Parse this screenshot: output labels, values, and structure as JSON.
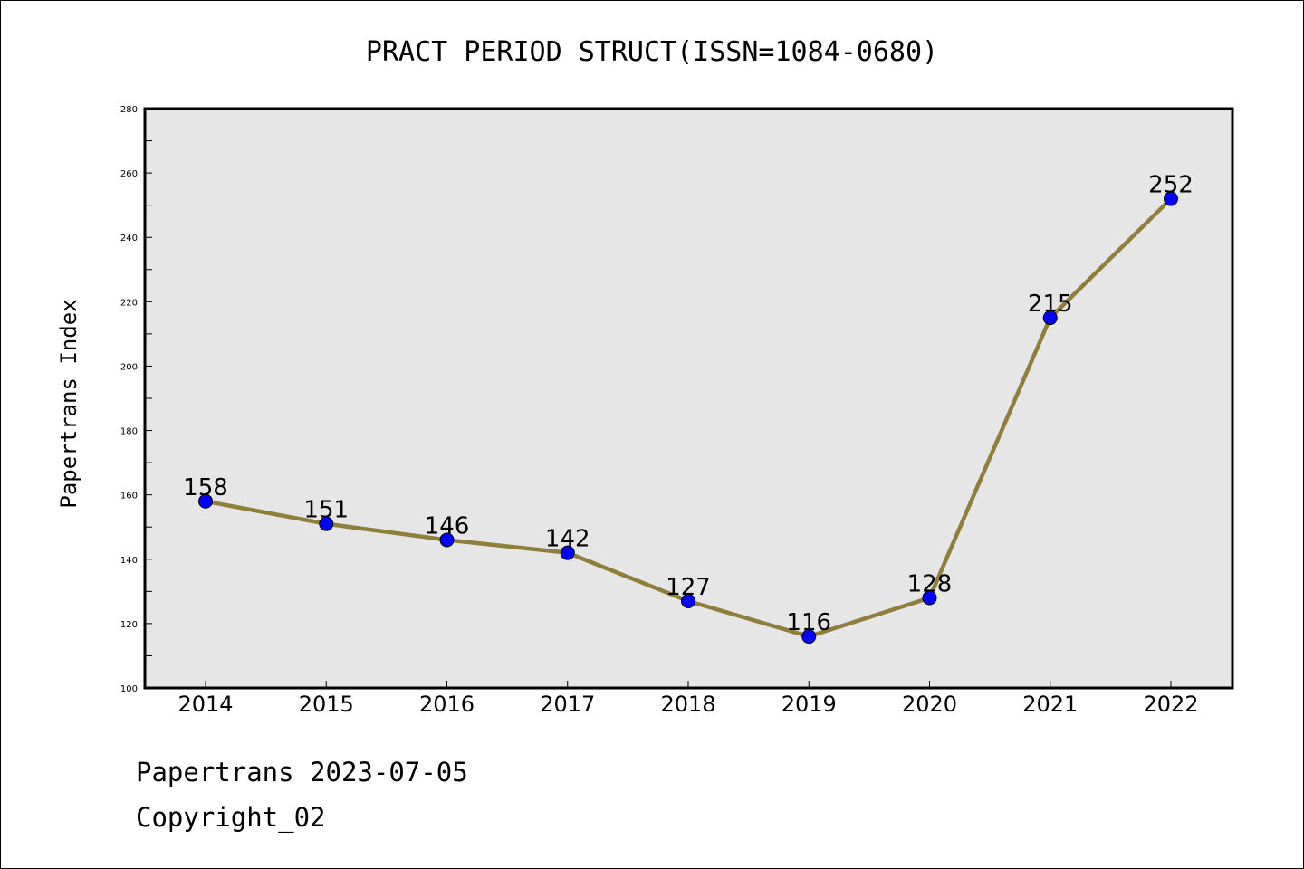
{
  "chart_data": {
    "type": "line",
    "title": "PRACT PERIOD STRUCT(ISSN=1084-0680)",
    "xlabel": "",
    "ylabel": "Papertrans Index",
    "categories": [
      "2014",
      "2015",
      "2016",
      "2017",
      "2018",
      "2019",
      "2020",
      "2021",
      "2022"
    ],
    "values": [
      158,
      151,
      146,
      142,
      127,
      116,
      128,
      215,
      252
    ],
    "data_labels": [
      "158",
      "151",
      "146",
      "142",
      "127",
      "116",
      "128",
      "215",
      "252"
    ],
    "ylim": [
      100,
      280
    ],
    "yticks": [
      100,
      120,
      140,
      160,
      180,
      200,
      220,
      240,
      260,
      280
    ],
    "ytick_labels": [
      "100",
      "120",
      "140",
      "160",
      "180",
      "200",
      "220",
      "240",
      "260",
      "280"
    ],
    "grid": false,
    "colors": {
      "line": "#8f7f3a",
      "marker": "#0000ff",
      "plot_bg": "#e6e6e6"
    }
  },
  "footer": {
    "line1": "Papertrans 2023-07-05",
    "line2": "Copyright_02"
  }
}
